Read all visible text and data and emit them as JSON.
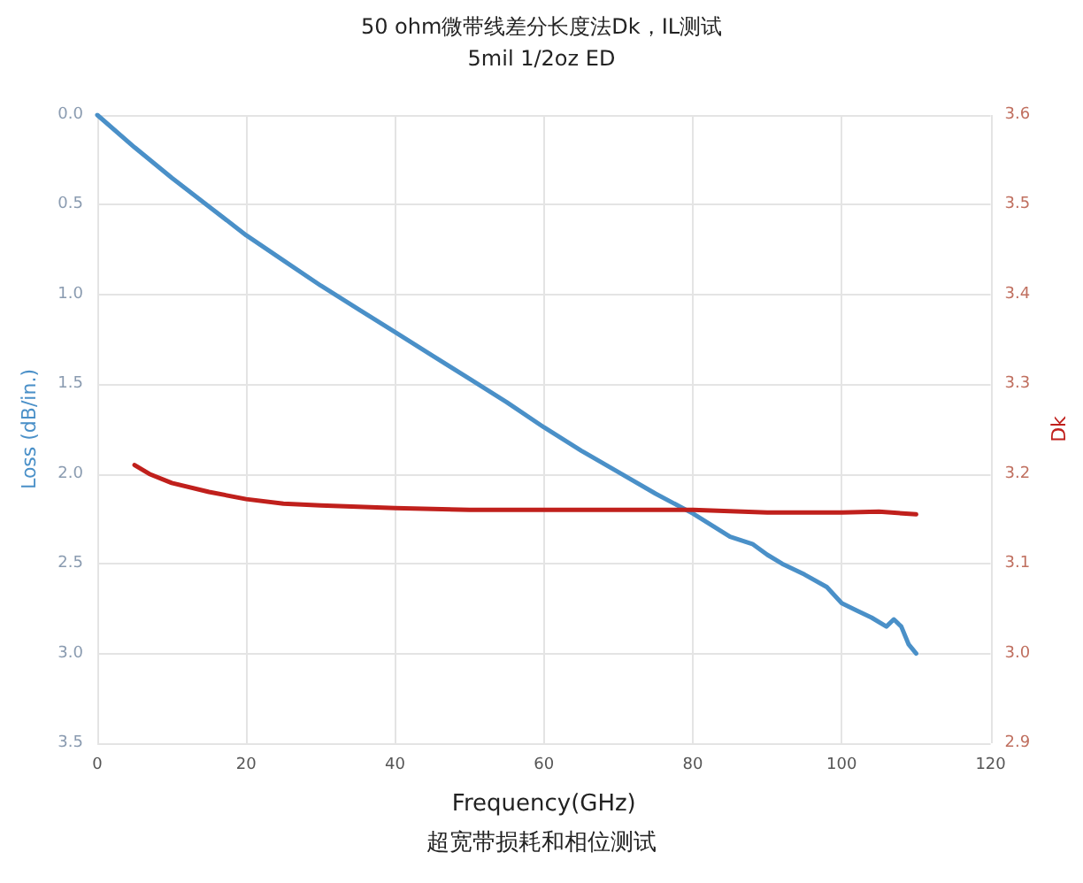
{
  "chart_data": {
    "type": "line",
    "title": "50 ohm微带线差分长度法Dk，IL测试",
    "subtitle": "5mil 1/2oz ED",
    "xlabel": "Frequency(GHz)",
    "ylabel": "Loss (dB/in.)",
    "y2label": "Dk",
    "annotations": [
      "超宽带损耗和相位测试"
    ],
    "xlim": [
      0,
      120
    ],
    "xticks": [
      0,
      20,
      40,
      60,
      80,
      100,
      120
    ],
    "ylim": [
      3.5,
      0
    ],
    "yticks": [
      {
        "value": 0,
        "label": "0.0"
      },
      {
        "value": 0.5,
        "label": "0.5"
      },
      {
        "value": 1,
        "label": "1.0"
      },
      {
        "value": 1.5,
        "label": "1.5"
      },
      {
        "value": 2,
        "label": "2.0"
      },
      {
        "value": 2.5,
        "label": "2.5"
      },
      {
        "value": 3,
        "label": "3.0"
      },
      {
        "value": 3.5,
        "label": "3.5"
      }
    ],
    "y2lim": [
      2.9,
      3.6
    ],
    "y2ticks": [
      {
        "value": 2.9,
        "label": "2.9"
      },
      {
        "value": 3,
        "label": "3.0"
      },
      {
        "value": 3.1,
        "label": "3.1"
      },
      {
        "value": 3.2,
        "label": "3.2"
      },
      {
        "value": 3.3,
        "label": "3.3"
      },
      {
        "value": 3.4,
        "label": "3.4"
      },
      {
        "value": 3.5,
        "label": "3.5"
      },
      {
        "value": 3.6,
        "label": "3.6"
      }
    ],
    "grid": true,
    "series": [
      {
        "color": "#4a90c8",
        "x": [
          0,
          5,
          10,
          15,
          20,
          25,
          30,
          35,
          40,
          45,
          50,
          55,
          60,
          65,
          70,
          75,
          80,
          85,
          88,
          90,
          92,
          95,
          98,
          100,
          102,
          104,
          106,
          107,
          108,
          109,
          110
        ],
        "values": [
          0,
          0.18,
          0.35,
          0.51,
          0.67,
          0.81,
          0.95,
          1.08,
          1.21,
          1.34,
          1.47,
          1.6,
          1.74,
          1.87,
          1.99,
          2.11,
          2.22,
          2.35,
          2.39,
          2.45,
          2.5,
          2.56,
          2.63,
          2.72,
          2.76,
          2.8,
          2.85,
          2.81,
          2.85,
          2.95,
          3.0
        ]
      },
      {
        "color": "#c0201c",
        "axis": "y2",
        "x": [
          5,
          7,
          10,
          15,
          20,
          25,
          30,
          40,
          50,
          60,
          70,
          80,
          90,
          100,
          105,
          110
        ],
        "values": [
          3.21,
          3.2,
          3.19,
          3.18,
          3.172,
          3.167,
          3.165,
          3.162,
          3.16,
          3.16,
          3.16,
          3.16,
          3.157,
          3.157,
          3.158,
          3.155
        ]
      }
    ]
  }
}
